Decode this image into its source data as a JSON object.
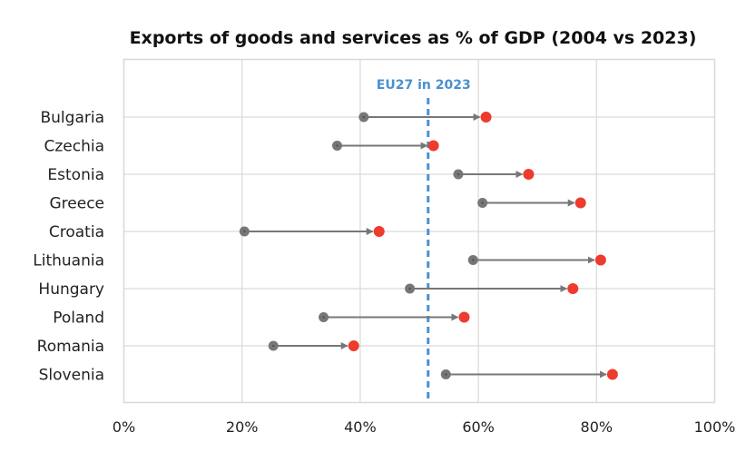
{
  "chart_data": {
    "type": "dumbbell",
    "title": "Exports of goods and services as % of GDP (2004 vs 2023)",
    "xlabel": "",
    "ylabel": "",
    "xlim": [
      0,
      100
    ],
    "x_ticks": [
      "0%",
      "20%",
      "40%",
      "60%",
      "80%",
      "100%"
    ],
    "x_tick_values": [
      0,
      20,
      40,
      60,
      80,
      100
    ],
    "grid": true,
    "categories": [
      "Bulgaria",
      "Czechia",
      "Estonia",
      "Greece",
      "Croatia",
      "Lithuania",
      "Hungary",
      "Poland",
      "Romania",
      "Slovenia"
    ],
    "series": [
      {
        "name": "2004",
        "color": "#777777",
        "values": [
          40.6,
          36.1,
          56.6,
          60.7,
          20.4,
          59.1,
          48.4,
          33.8,
          25.3,
          54.5
        ]
      },
      {
        "name": "2023",
        "color": "#ee3b2e",
        "values": [
          61.3,
          52.4,
          68.5,
          77.3,
          43.2,
          80.7,
          76.0,
          57.6,
          38.9,
          82.7
        ]
      }
    ],
    "reference_line": {
      "label": "EU27 in 2023",
      "value": 51.5,
      "color": "#4a90d0",
      "style": "dashed"
    }
  }
}
